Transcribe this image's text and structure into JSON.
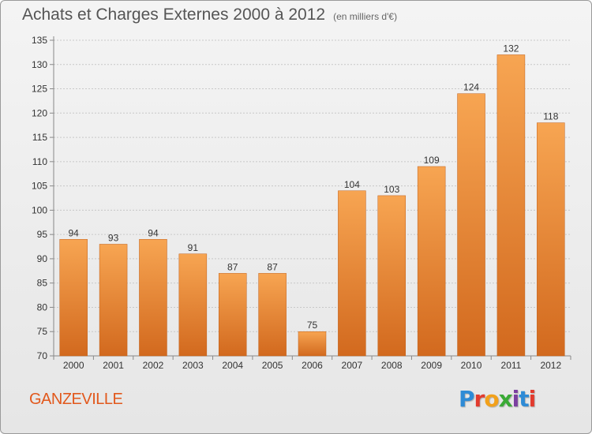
{
  "title": "Achats et Charges Externes 2000 à 2012",
  "title_unit": "(en milliers d'€)",
  "commune": "GANZEVILLE",
  "brand": {
    "letters": [
      "P",
      "r",
      "o",
      "x",
      "i",
      "t",
      "i"
    ],
    "colors": [
      "#2e8bd6",
      "#e23b2e",
      "#f2a11b",
      "#3aaa35",
      "#7b3fa0",
      "#2e8bd6",
      "#e23b2e"
    ]
  },
  "chart_data": {
    "type": "bar",
    "categories": [
      "2000",
      "2001",
      "2002",
      "2003",
      "2004",
      "2005",
      "2006",
      "2007",
      "2008",
      "2009",
      "2010",
      "2011",
      "2012"
    ],
    "values": [
      94,
      93,
      94,
      91,
      87,
      87,
      75,
      104,
      103,
      109,
      124,
      132,
      118
    ],
    "ylim": [
      70,
      135
    ],
    "yticks": [
      70,
      75,
      80,
      85,
      90,
      95,
      100,
      105,
      110,
      115,
      120,
      125,
      130,
      135
    ],
    "grid": true,
    "bar_color": "#f0902e"
  }
}
